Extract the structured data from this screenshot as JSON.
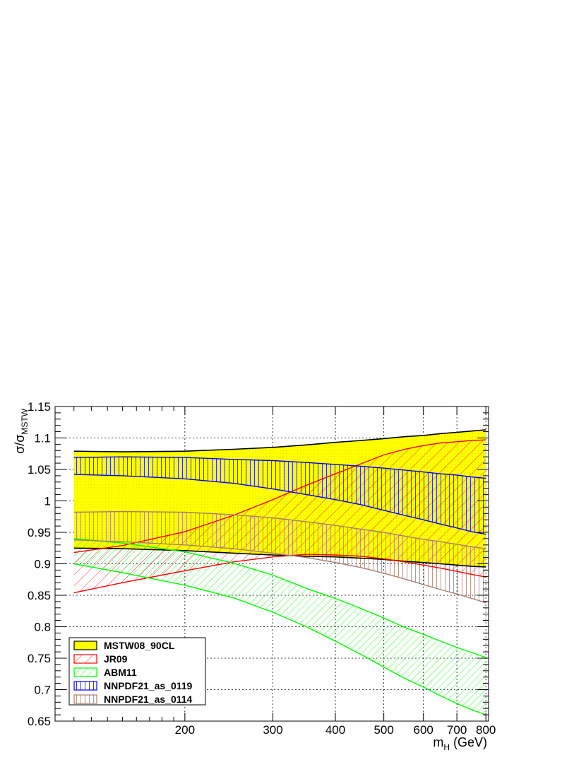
{
  "chart_data": {
    "type": "area",
    "title": "",
    "xlabel": "m_H (GeV)",
    "xlabel_main": "m",
    "xlabel_sub": "H",
    "xlabel_unit": " (GeV)",
    "ylabel_main": "σ/σ",
    "ylabel_sub": "MSTW",
    "x_scale": "log",
    "xlim": [
      110,
      810
    ],
    "ylim": [
      0.65,
      1.15
    ],
    "grid": true,
    "legend_position": "bottom-left",
    "x_ticks": [
      200,
      300,
      400,
      500,
      600,
      700,
      800
    ],
    "x_tick_labels": [
      "200",
      "300",
      "400",
      "500",
      "600",
      "700",
      "800"
    ],
    "y_ticks": [
      0.65,
      0.7,
      0.75,
      0.8,
      0.85,
      0.9,
      0.95,
      1.0,
      1.05,
      1.1,
      1.15
    ],
    "y_tick_labels": [
      "0.65",
      "0.7",
      "0.75",
      "0.8",
      "0.85",
      "0.9",
      "0.95",
      "1",
      "1.05",
      "1.1",
      "1.15"
    ],
    "x": [
      120,
      150,
      200,
      250,
      300,
      350,
      400,
      450,
      500,
      550,
      600,
      650,
      700,
      750,
      800
    ],
    "series": [
      {
        "name": "MSTW08_90CL",
        "color": "#000000",
        "fill": "#ffff00",
        "upper": [
          1.079,
          1.078,
          1.079,
          1.082,
          1.085,
          1.089,
          1.093,
          1.096,
          1.099,
          1.102,
          1.104,
          1.107,
          1.109,
          1.111,
          1.113
        ],
        "lower": [
          0.925,
          0.924,
          0.921,
          0.917,
          0.914,
          0.912,
          0.911,
          0.909,
          0.907,
          0.904,
          0.902,
          0.9,
          0.898,
          0.896,
          0.895
        ]
      },
      {
        "name": "JR09",
        "color": "#ff0000",
        "fill": "#ff0000",
        "upper": [
          0.918,
          0.929,
          0.951,
          0.977,
          1.002,
          1.025,
          1.043,
          1.059,
          1.073,
          1.082,
          1.088,
          1.092,
          1.094,
          1.096,
          1.097
        ],
        "lower": [
          0.854,
          0.87,
          0.889,
          0.903,
          0.911,
          0.915,
          0.914,
          0.912,
          0.908,
          0.903,
          0.898,
          0.893,
          0.888,
          0.883,
          0.879
        ]
      },
      {
        "name": "ABM11",
        "color": "#00ff00",
        "fill": "#00ff00",
        "upper": [
          0.94,
          0.933,
          0.919,
          0.901,
          0.882,
          0.861,
          0.845,
          0.829,
          0.814,
          0.799,
          0.788,
          0.777,
          0.767,
          0.759,
          0.751
        ],
        "lower": [
          0.9,
          0.886,
          0.866,
          0.846,
          0.823,
          0.8,
          0.777,
          0.756,
          0.736,
          0.718,
          0.704,
          0.69,
          0.678,
          0.668,
          0.66
        ]
      },
      {
        "name": "NNPDF21_as_0119",
        "color": "#0000ff",
        "fill": "#0000ff",
        "upper": [
          1.069,
          1.07,
          1.069,
          1.066,
          1.064,
          1.061,
          1.058,
          1.055,
          1.052,
          1.049,
          1.046,
          1.043,
          1.041,
          1.038,
          1.036
        ],
        "lower": [
          1.042,
          1.04,
          1.035,
          1.028,
          1.019,
          1.01,
          1.002,
          0.994,
          0.985,
          0.977,
          0.97,
          0.963,
          0.957,
          0.951,
          0.947
        ]
      },
      {
        "name": "NNPDF21_as_0114",
        "color": "#a57f73",
        "fill": "#a57f73",
        "upper": [
          0.982,
          0.983,
          0.982,
          0.978,
          0.973,
          0.967,
          0.961,
          0.955,
          0.95,
          0.944,
          0.939,
          0.935,
          0.931,
          0.927,
          0.924
        ],
        "lower": [
          0.938,
          0.935,
          0.93,
          0.924,
          0.917,
          0.91,
          0.902,
          0.894,
          0.885,
          0.876,
          0.867,
          0.859,
          0.852,
          0.845,
          0.838
        ]
      }
    ]
  }
}
